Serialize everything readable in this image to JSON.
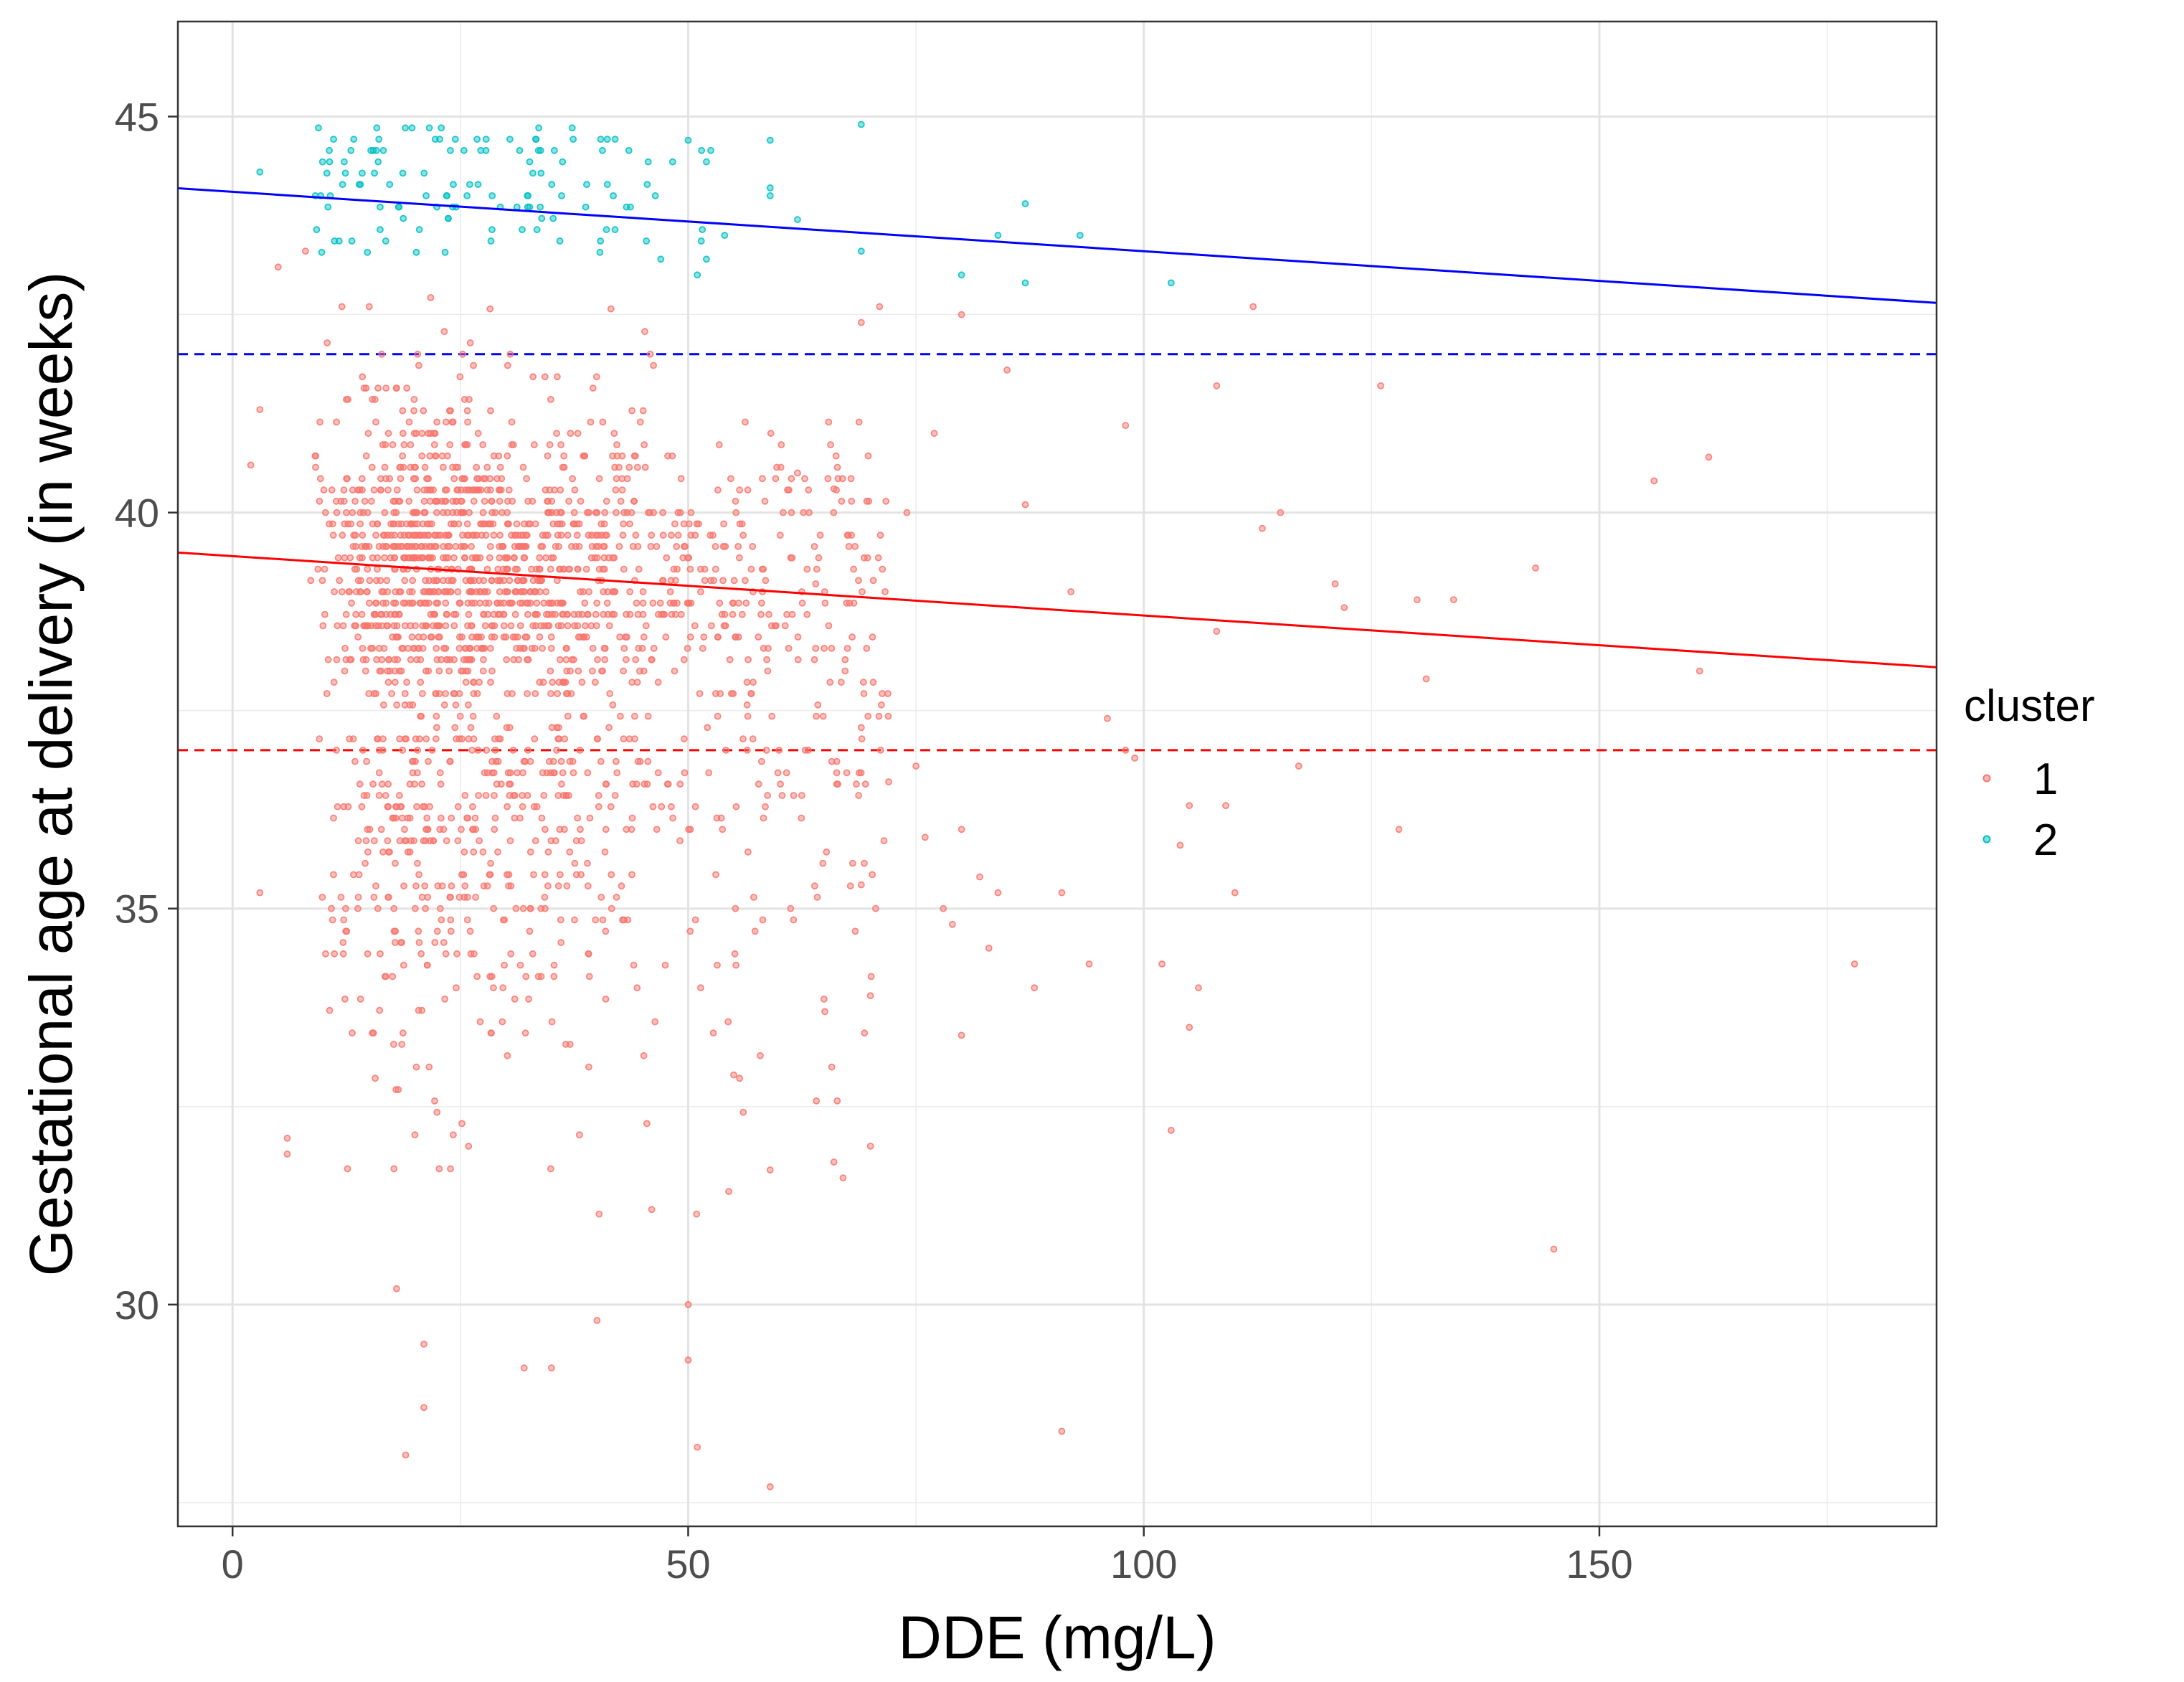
{
  "chart_data": {
    "type": "scatter",
    "title": "",
    "xlabel": "DDE (mg/L)",
    "ylabel": "Gestational age at delivery (in weeks)",
    "xlim": [
      -6,
      187
    ],
    "ylim": [
      27.2,
      46.2
    ],
    "x_ticks": [
      0,
      50,
      100,
      150
    ],
    "y_ticks": [
      30,
      35,
      40,
      45
    ],
    "x_minor_ticks": [
      25,
      75,
      125,
      175
    ],
    "y_minor_ticks": [
      27.5,
      32.5,
      37.5,
      42.5
    ],
    "grid": true,
    "legend": {
      "title": "cluster",
      "position": "right",
      "entries": [
        {
          "label": "1",
          "color": "#F8766D"
        },
        {
          "label": "2",
          "color": "#00BFC4"
        }
      ]
    },
    "series": [
      {
        "name": "1",
        "color": "#F8766D",
        "note": "approx. 2100 points; core cloud sampled procedurally, sparse outliers listed",
        "core_x_range": [
          7,
          60
        ],
        "core_y_mean": 39.4,
        "outliers": [
          [
            2,
            40.6
          ],
          [
            3,
            35.2
          ],
          [
            3,
            41.3
          ],
          [
            5,
            43.1
          ],
          [
            6,
            32.1
          ],
          [
            6,
            31.9
          ],
          [
            8,
            43.3
          ],
          [
            12,
            42.6
          ],
          [
            15,
            42.6
          ],
          [
            18,
            30.2
          ],
          [
            19,
            28.1
          ],
          [
            21,
            28.7
          ],
          [
            21,
            29.5
          ],
          [
            32,
            29.2
          ],
          [
            35,
            29.2
          ],
          [
            40,
            29.8
          ],
          [
            46,
            31.2
          ],
          [
            50,
            30.0
          ],
          [
            50,
            29.3
          ],
          [
            51,
            28.2
          ],
          [
            59,
            27.7
          ],
          [
            55,
            32.9
          ],
          [
            59,
            31.7
          ],
          [
            65,
            33.7
          ],
          [
            66,
            31.8
          ],
          [
            67,
            31.6
          ],
          [
            70,
            32.0
          ],
          [
            70,
            33.9
          ],
          [
            69,
            35.3
          ],
          [
            72,
            36.6
          ],
          [
            75,
            36.8
          ],
          [
            76,
            35.9
          ],
          [
            78,
            35.0
          ],
          [
            79,
            34.8
          ],
          [
            80,
            33.4
          ],
          [
            80,
            36.0
          ],
          [
            82,
            35.4
          ],
          [
            83,
            34.5
          ],
          [
            84,
            35.2
          ],
          [
            88,
            34.0
          ],
          [
            91,
            35.2
          ],
          [
            91,
            28.4
          ],
          [
            94,
            34.3
          ],
          [
            96,
            37.4
          ],
          [
            98,
            37.0
          ],
          [
            99,
            36.9
          ],
          [
            102,
            34.3
          ],
          [
            103,
            32.2
          ],
          [
            104,
            35.8
          ],
          [
            105,
            36.3
          ],
          [
            105,
            33.5
          ],
          [
            106,
            34.0
          ],
          [
            108,
            38.5
          ],
          [
            109,
            36.3
          ],
          [
            110,
            35.2
          ],
          [
            113,
            39.8
          ],
          [
            115,
            40.0
          ],
          [
            117,
            36.8
          ],
          [
            121,
            39.1
          ],
          [
            122,
            38.8
          ],
          [
            128,
            36.0
          ],
          [
            130,
            38.9
          ],
          [
            131,
            37.9
          ],
          [
            134,
            38.9
          ],
          [
            143,
            39.3
          ],
          [
            145,
            30.7
          ],
          [
            156,
            40.4
          ],
          [
            161,
            38.0
          ],
          [
            162,
            40.7
          ],
          [
            178,
            34.3
          ],
          [
            126,
            41.6
          ],
          [
            112,
            42.6
          ],
          [
            108,
            41.6
          ],
          [
            98,
            41.1
          ],
          [
            92,
            39.0
          ],
          [
            87,
            40.1
          ],
          [
            85,
            41.8
          ],
          [
            80,
            42.5
          ],
          [
            77,
            41.0
          ],
          [
            74,
            40.0
          ],
          [
            71,
            42.6
          ],
          [
            69,
            42.4
          ],
          [
            66,
            40.3
          ],
          [
            64,
            39.1
          ],
          [
            62,
            40.5
          ]
        ]
      },
      {
        "name": "2",
        "color": "#00BFC4",
        "note": "approx. 130 points above ~43 weeks; sampled procedurally, sparse outliers listed",
        "core_x_range": [
          9,
          55
        ],
        "core_y_range": [
          43.1,
          45.0
        ],
        "outliers": [
          [
            3,
            44.3
          ],
          [
            50,
            44.7
          ],
          [
            59,
            44.7
          ],
          [
            69,
            44.9
          ],
          [
            59,
            44.1
          ],
          [
            59,
            44.0
          ],
          [
            62,
            43.7
          ],
          [
            69,
            43.3
          ],
          [
            80,
            43.0
          ],
          [
            84,
            43.5
          ],
          [
            87,
            42.9
          ],
          [
            87,
            43.9
          ],
          [
            93,
            43.5
          ],
          [
            103,
            42.9
          ],
          [
            51,
            43.0
          ],
          [
            52,
            43.2
          ],
          [
            54,
            43.5
          ],
          [
            47,
            43.2
          ]
        ]
      }
    ],
    "fitted_lines": [
      {
        "name": "cluster 2 fit",
        "color": "#0000FF",
        "style": "solid",
        "intercept": 44.05,
        "slope": -0.0075
      },
      {
        "name": "cluster 1 fit",
        "color": "#FF0000",
        "style": "solid",
        "intercept": 39.45,
        "slope": -0.0075
      },
      {
        "name": "cluster 2 reference",
        "color": "#0000FF",
        "style": "dashed",
        "y": 42.0
      },
      {
        "name": "cluster 1 reference",
        "color": "#FF0000",
        "style": "dashed",
        "y": 37.0
      }
    ]
  }
}
